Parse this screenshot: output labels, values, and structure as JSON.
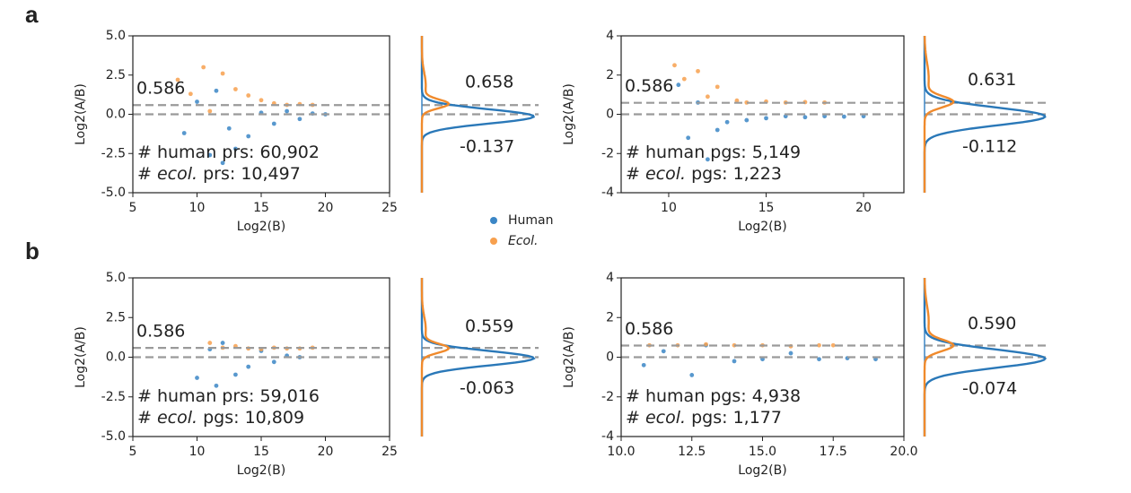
{
  "panel_labels": [
    "a",
    "b"
  ],
  "legend": [
    {
      "name": "Human",
      "color": "#3b86c6",
      "italic": false
    },
    {
      "name": "Ecol.",
      "color": "#f7a04e",
      "italic": true
    }
  ],
  "chart_data": [
    {
      "type": "scatter",
      "xlabel": "Log2(B)",
      "ylabel": "Log2(A/B)",
      "xlim": [
        5,
        25
      ],
      "ylim": [
        -5,
        5
      ],
      "xticks": [
        5,
        10,
        15,
        20,
        25
      ],
      "yticks": [
        {
          "value": -5,
          "label": "-5.0"
        },
        {
          "value": -2.5,
          "label": "-2.5"
        },
        {
          "value": 0,
          "label": "0.0"
        },
        {
          "value": 2.5,
          "label": "2.5"
        },
        {
          "value": 5,
          "label": "5.0"
        }
      ],
      "reference_lines": [
        0.586,
        0
      ],
      "series": [
        {
          "name": "Human",
          "color": "#3b86c6",
          "median": -0.137,
          "x": [
            9,
            10,
            11,
            11.5,
            12,
            12.5,
            13,
            14,
            15,
            16,
            17,
            18,
            19,
            20
          ],
          "y": [
            -1.2,
            0.8,
            -2.6,
            1.5,
            -3.1,
            -0.9,
            -2.2,
            -1.4,
            0.1,
            -0.6,
            0.2,
            -0.3,
            0.05,
            0
          ]
        },
        {
          "name": "Ecol.",
          "color": "#f7a04e",
          "median": 0.658,
          "x": [
            8.5,
            9.5,
            10.5,
            11,
            12,
            13,
            14,
            15,
            16,
            17,
            18,
            19
          ],
          "y": [
            2.2,
            1.3,
            3.0,
            0.2,
            2.6,
            1.6,
            1.2,
            0.9,
            0.7,
            0.6,
            0.65,
            0.6
          ]
        }
      ],
      "annotations": [
        [
          "# human prs: 60,902"
        ],
        [
          "# ",
          "ecol.",
          " prs: 10,497"
        ]
      ]
    },
    {
      "type": "scatter",
      "xlabel": "Log2(B)",
      "ylabel": "Log2(A/B)",
      "xlim": [
        7.56,
        22.07
      ],
      "ylim": [
        -4,
        4
      ],
      "xticks": [
        10,
        15,
        20
      ],
      "yticks": [
        -4,
        -2,
        0,
        2,
        4
      ],
      "reference_lines": [
        0.586,
        0
      ],
      "series": [
        {
          "name": "Human",
          "color": "#3b86c6",
          "median": -0.112,
          "x": [
            10.5,
            11,
            11.5,
            12,
            12.5,
            13,
            14,
            15,
            16,
            17,
            18,
            19,
            20
          ],
          "y": [
            1.5,
            -1.2,
            0.6,
            -2.3,
            -0.8,
            -0.4,
            -0.3,
            -0.2,
            -0.1,
            -0.15,
            -0.1,
            -0.12,
            -0.1
          ]
        },
        {
          "name": "Ecol.",
          "color": "#f7a04e",
          "median": 0.631,
          "x": [
            10.3,
            10.8,
            11.5,
            12,
            12.5,
            13.5,
            14,
            15,
            16,
            17,
            18
          ],
          "y": [
            2.5,
            1.8,
            2.2,
            0.9,
            1.4,
            0.7,
            0.6,
            0.65,
            0.6,
            0.62,
            0.6
          ]
        }
      ],
      "annotations": [
        [
          "# human pgs: 5,149"
        ],
        [
          "# ",
          "ecol.",
          " pgs: 1,223"
        ]
      ]
    },
    {
      "type": "scatter",
      "xlabel": "Log2(B)",
      "ylabel": "Log2(A/B)",
      "xlim": [
        5,
        25
      ],
      "ylim": [
        -5,
        5
      ],
      "xticks": [
        5,
        10,
        15,
        20,
        25
      ],
      "yticks": [
        {
          "value": -5,
          "label": "-5.0"
        },
        {
          "value": -2.5,
          "label": "-2.5"
        },
        {
          "value": 0,
          "label": "0.0"
        },
        {
          "value": 2.5,
          "label": "2.5"
        },
        {
          "value": 5,
          "label": "5.0"
        }
      ],
      "reference_lines": [
        0.586,
        0
      ],
      "series": [
        {
          "name": "Human",
          "color": "#3b86c6",
          "median": -0.063,
          "x": [
            10,
            11,
            11.5,
            12,
            13,
            14,
            15,
            16,
            17,
            18
          ],
          "y": [
            -1.3,
            0.5,
            -1.8,
            0.9,
            -1.1,
            -0.6,
            0.4,
            -0.3,
            0.1,
            0
          ]
        },
        {
          "name": "Ecol.",
          "color": "#f7a04e",
          "median": 0.559,
          "x": [
            11,
            12,
            13,
            14,
            15,
            16,
            17,
            18,
            19
          ],
          "y": [
            0.9,
            0.6,
            0.7,
            0.55,
            0.5,
            0.6,
            0.55,
            0.55,
            0.6
          ]
        }
      ],
      "annotations": [
        [
          "# human prs: 59,016"
        ],
        [
          "# ",
          "ecol.",
          " pgs: 10,809"
        ]
      ]
    },
    {
      "type": "scatter",
      "xlabel": "Log2(B)",
      "ylabel": "Log2(A/B)",
      "xlim": [
        10,
        20
      ],
      "ylim": [
        -4,
        4
      ],
      "xticks": [
        {
          "value": 10,
          "label": "10.0"
        },
        {
          "value": 12.5,
          "label": "12.5"
        },
        {
          "value": 15,
          "label": "15.0"
        },
        {
          "value": 17.5,
          "label": "17.5"
        },
        {
          "value": 20,
          "label": "20.0"
        }
      ],
      "yticks": [
        -4,
        -2,
        0,
        2,
        4
      ],
      "reference_lines": [
        0.586,
        0
      ],
      "series": [
        {
          "name": "Human",
          "color": "#3b86c6",
          "median": -0.074,
          "x": [
            10.8,
            11.5,
            12.5,
            13,
            14,
            15,
            16,
            17,
            18,
            19
          ],
          "y": [
            -0.4,
            0.3,
            -0.9,
            0.6,
            -0.2,
            -0.1,
            0.2,
            -0.1,
            -0.05,
            -0.1
          ]
        },
        {
          "name": "Ecol.",
          "color": "#f7a04e",
          "median": {
            "value": 0.59,
            "label": "0.590"
          },
          "x": [
            11,
            12,
            13,
            14,
            15,
            16,
            17,
            17.5
          ],
          "y": [
            0.6,
            0.6,
            0.65,
            0.6,
            0.6,
            0.55,
            0.6,
            0.6
          ]
        }
      ],
      "annotations": [
        [
          "# human pgs: 4,938"
        ],
        [
          "# ",
          "ecol.",
          " pgs: 1,177"
        ]
      ]
    }
  ]
}
